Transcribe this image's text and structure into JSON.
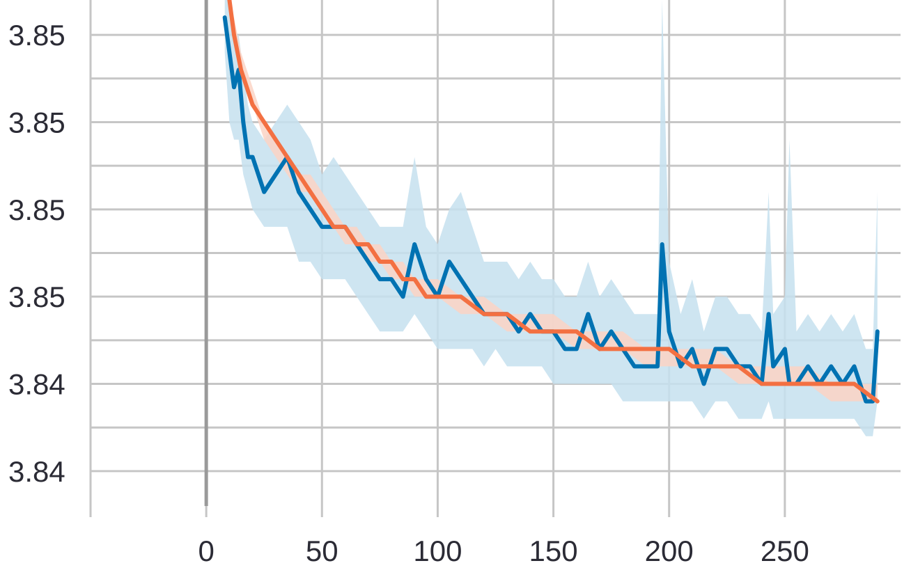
{
  "chart_data": {
    "type": "line",
    "title": "",
    "xlabel": "",
    "ylabel": "",
    "x_ticks": [
      0,
      50,
      100,
      150,
      200,
      250
    ],
    "x_tick_labels": [
      "0",
      "50",
      "100",
      "150",
      "200",
      "250"
    ],
    "xlim": [
      -50,
      300
    ],
    "y_tick_labels": [
      "3.85",
      "3.85",
      "3.85",
      "3.85",
      "3.84",
      "3.84"
    ],
    "y_tick_values": [
      3.8495,
      3.849,
      3.8485,
      3.848,
      3.8475,
      3.847
    ],
    "ylim": [
      3.8468,
      3.8497
    ],
    "grid": true,
    "legend": "none",
    "series": [
      {
        "color": "#0072b2",
        "band_color": "#c6e0ef",
        "x": [
          8,
          10,
          12,
          14,
          16,
          18,
          20,
          25,
          30,
          35,
          40,
          45,
          50,
          55,
          60,
          65,
          70,
          75,
          80,
          85,
          90,
          95,
          100,
          105,
          110,
          115,
          120,
          125,
          130,
          135,
          140,
          145,
          150,
          155,
          160,
          165,
          170,
          175,
          180,
          185,
          190,
          195,
          197,
          200,
          205,
          210,
          215,
          220,
          225,
          230,
          235,
          240,
          243,
          245,
          250,
          252,
          255,
          260,
          265,
          270,
          275,
          280,
          285,
          288,
          290
        ],
        "values": [
          3.8496,
          3.8494,
          3.8492,
          3.8493,
          3.849,
          3.8488,
          3.8488,
          3.8486,
          3.8487,
          3.8488,
          3.8486,
          3.8485,
          3.8484,
          3.8484,
          3.8484,
          3.8483,
          3.8482,
          3.8481,
          3.8481,
          3.848,
          3.8483,
          3.8481,
          3.848,
          3.8482,
          3.8481,
          3.848,
          3.8479,
          3.8479,
          3.8479,
          3.8478,
          3.8479,
          3.8478,
          3.8478,
          3.8477,
          3.8477,
          3.8479,
          3.8477,
          3.8478,
          3.8477,
          3.8476,
          3.8476,
          3.8476,
          3.8483,
          3.8478,
          3.8476,
          3.8477,
          3.8475,
          3.8477,
          3.8477,
          3.8476,
          3.8476,
          3.8475,
          3.8479,
          3.8476,
          3.8477,
          3.8475,
          3.8475,
          3.8476,
          3.8475,
          3.8476,
          3.8475,
          3.8476,
          3.8474,
          3.8474,
          3.8478
        ],
        "band_lower": [
          3.8494,
          3.849,
          3.8489,
          3.8489,
          3.8487,
          3.8486,
          3.8485,
          3.8484,
          3.8484,
          3.8484,
          3.8482,
          3.8482,
          3.8481,
          3.8481,
          3.8481,
          3.848,
          3.8479,
          3.8478,
          3.8478,
          3.8478,
          3.8479,
          3.8478,
          3.8477,
          3.8477,
          3.8477,
          3.8477,
          3.8476,
          3.8477,
          3.8476,
          3.8476,
          3.8476,
          3.8476,
          3.8475,
          3.8475,
          3.8475,
          3.8475,
          3.8475,
          3.8475,
          3.8474,
          3.8474,
          3.8474,
          3.8474,
          3.8474,
          3.8474,
          3.8474,
          3.8474,
          3.8473,
          3.8474,
          3.8474,
          3.8473,
          3.8473,
          3.8473,
          3.8474,
          3.8473,
          3.8473,
          3.8473,
          3.8473,
          3.8473,
          3.8473,
          3.8473,
          3.8473,
          3.8473,
          3.8472,
          3.8472,
          3.8474
        ],
        "band_upper": [
          3.8497,
          3.8497,
          3.8495,
          3.8495,
          3.8493,
          3.8491,
          3.849,
          3.8489,
          3.849,
          3.8491,
          3.849,
          3.8489,
          3.8487,
          3.8488,
          3.8487,
          3.8486,
          3.8485,
          3.8484,
          3.8484,
          3.8484,
          3.8488,
          3.8484,
          3.8483,
          3.8485,
          3.8486,
          3.8484,
          3.8482,
          3.8482,
          3.8482,
          3.8481,
          3.8482,
          3.8481,
          3.8481,
          3.848,
          3.848,
          3.8482,
          3.848,
          3.8481,
          3.848,
          3.8479,
          3.8479,
          3.8479,
          3.8497,
          3.8482,
          3.8479,
          3.8481,
          3.8478,
          3.848,
          3.848,
          3.8479,
          3.8479,
          3.8478,
          3.8486,
          3.8479,
          3.848,
          3.8489,
          3.8478,
          3.8479,
          3.8478,
          3.8479,
          3.8478,
          3.8479,
          3.8477,
          3.8477,
          3.8486
        ]
      },
      {
        "color": "#f37042",
        "band_color": "#fbd3c4",
        "x": [
          10,
          12,
          15,
          20,
          25,
          30,
          35,
          40,
          45,
          50,
          55,
          60,
          65,
          70,
          75,
          80,
          85,
          90,
          95,
          100,
          110,
          120,
          130,
          140,
          150,
          160,
          170,
          180,
          190,
          200,
          210,
          220,
          230,
          240,
          250,
          260,
          270,
          280,
          290
        ],
        "values": [
          3.8497,
          3.8495,
          3.8493,
          3.8491,
          3.849,
          3.8489,
          3.8488,
          3.8487,
          3.8486,
          3.8485,
          3.8484,
          3.8484,
          3.8483,
          3.8483,
          3.8482,
          3.8482,
          3.8481,
          3.8481,
          3.848,
          3.848,
          3.848,
          3.8479,
          3.8479,
          3.8478,
          3.8478,
          3.8478,
          3.8477,
          3.8477,
          3.8477,
          3.8477,
          3.8476,
          3.8476,
          3.8476,
          3.8475,
          3.8475,
          3.8475,
          3.8475,
          3.8475,
          3.8474
        ],
        "band_lower": [
          3.8497,
          3.8495,
          3.8493,
          3.8491,
          3.8489,
          3.8488,
          3.8487,
          3.8486,
          3.8486,
          3.8485,
          3.8484,
          3.8483,
          3.8483,
          3.8482,
          3.8482,
          3.8481,
          3.8481,
          3.848,
          3.848,
          3.848,
          3.8479,
          3.8479,
          3.8478,
          3.8478,
          3.8478,
          3.8477,
          3.8477,
          3.8477,
          3.8476,
          3.8476,
          3.8476,
          3.8476,
          3.8475,
          3.8475,
          3.8475,
          3.8475,
          3.8474,
          3.8474,
          3.8474
        ],
        "band_upper": [
          3.8497,
          3.8496,
          3.8494,
          3.8492,
          3.849,
          3.8489,
          3.8488,
          3.8487,
          3.8487,
          3.8486,
          3.8485,
          3.8484,
          3.8484,
          3.8483,
          3.8483,
          3.8482,
          3.8482,
          3.8481,
          3.8481,
          3.8481,
          3.848,
          3.848,
          3.8479,
          3.8479,
          3.8479,
          3.8478,
          3.8478,
          3.8478,
          3.8477,
          3.8477,
          3.8477,
          3.8477,
          3.8476,
          3.8476,
          3.8476,
          3.8476,
          3.8475,
          3.8475,
          3.8475
        ]
      }
    ]
  }
}
